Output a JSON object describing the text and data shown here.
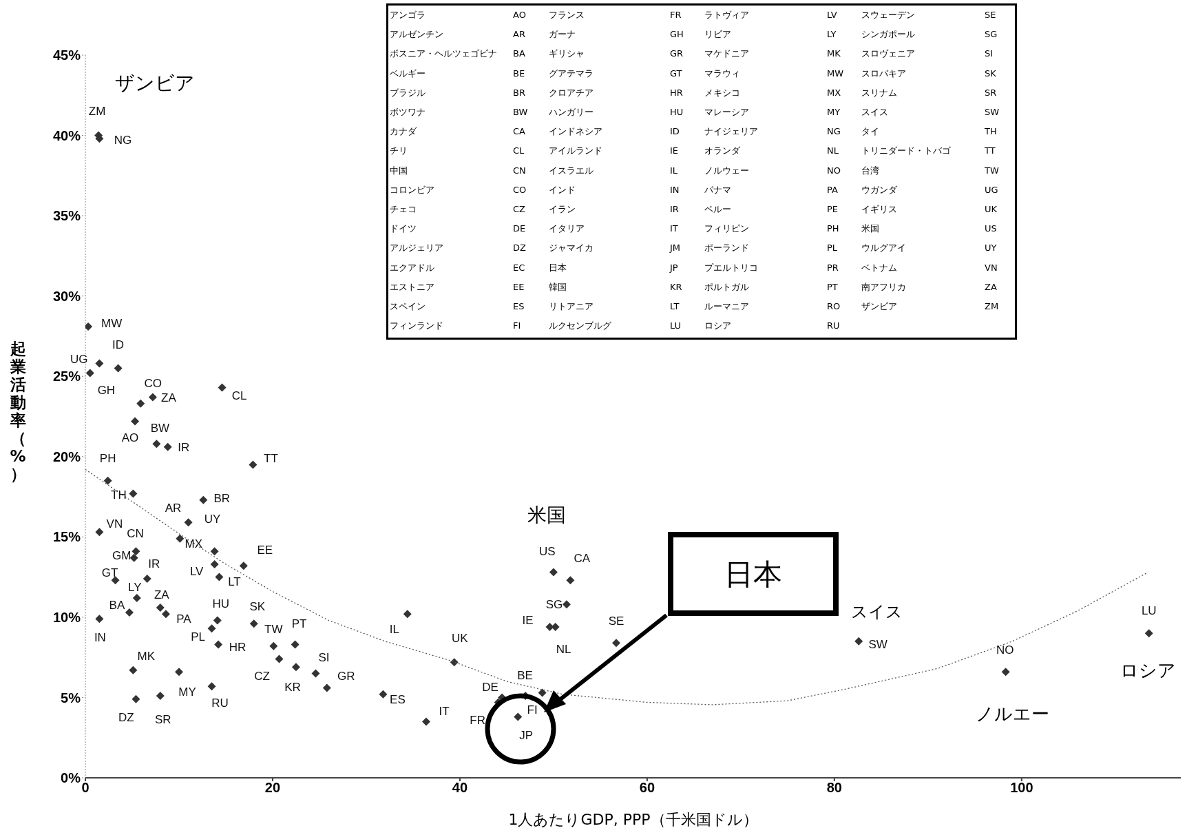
{
  "chart_data": [
    {
      "type": "scatter",
      "xlabel": "1人あたりGDP, PPP（千米国ドル）",
      "ylabel": "起業活動率（%）",
      "xlim": [
        0,
        117
      ],
      "ylim": [
        0,
        45
      ],
      "xticks": [
        0,
        20,
        40,
        60,
        80,
        100
      ],
      "yticks": [
        {
          "value": 0,
          "label": "0%"
        },
        {
          "value": 5,
          "label": "5%"
        },
        {
          "value": 10,
          "label": "10%"
        },
        {
          "value": 15,
          "label": "15%"
        },
        {
          "value": 20,
          "label": "20%"
        },
        {
          "value": 25,
          "label": "25%"
        },
        {
          "value": 30,
          "label": "30%"
        },
        {
          "value": 35,
          "label": "35%"
        },
        {
          "value": 40,
          "label": "40%"
        },
        {
          "value": 45,
          "label": "45%"
        }
      ],
      "annotations": [
        {
          "text": "ザンビア",
          "x": 1.4,
          "y": 40
        },
        {
          "text": "米国",
          "x": 50,
          "y": 12.8
        },
        "日本",
        {
          "text": "スイス",
          "x": 82.6,
          "y": 8.5
        },
        {
          "text": "ノルエー",
          "x": 98.3,
          "y": 6.6
        },
        {
          "text": "ロシア",
          "x": 113.6,
          "y": 9
        }
      ],
      "series": [
        {
          "type": "scatter",
          "color": "#333333",
          "marker": "diamond",
          "x": [
            1.4,
            1.5,
            0.3,
            3.5,
            0.5,
            1.5,
            5.9,
            7.2,
            14.6,
            5.3,
            7.6,
            8.8,
            17.9,
            2.4,
            5.1,
            12.6,
            11.0,
            10.1,
            13.8,
            13.8,
            14.3,
            16.9,
            1.5,
            5.4,
            5.2,
            3.2,
            6.6,
            5.5,
            4.7,
            8.0,
            8.6,
            1.5,
            14.1,
            13.5,
            14.2,
            18.0,
            20.1,
            22.4,
            20.7,
            22.5,
            24.6,
            25.8,
            5.1,
            10.0,
            13.5,
            8.0,
            5.4,
            31.8,
            34.4,
            39.4,
            36.4,
            44.5,
            44.1,
            46.2,
            47.0,
            48.8,
            50.0,
            51.8,
            51.4,
            49.6,
            50.2,
            56.7,
            82.6,
            98.3,
            113.6
          ],
          "values": [
            40.0,
            39.8,
            28.1,
            25.5,
            25.2,
            25.8,
            23.3,
            23.7,
            24.3,
            22.2,
            20.8,
            20.6,
            19.5,
            18.5,
            17.7,
            17.3,
            15.9,
            14.9,
            14.1,
            13.3,
            12.5,
            13.2,
            15.3,
            14.1,
            13.7,
            12.3,
            12.4,
            11.2,
            10.3,
            10.6,
            10.2,
            9.9,
            9.8,
            9.3,
            8.3,
            9.6,
            8.2,
            8.3,
            7.4,
            6.9,
            6.5,
            5.6,
            6.7,
            6.6,
            5.7,
            5.1,
            4.9,
            5.2,
            10.2,
            7.2,
            3.5,
            5.0,
            4.7,
            3.8,
            5.1,
            5.3,
            12.8,
            12.3,
            10.8,
            9.4,
            9.4,
            8.4,
            8.5,
            6.6,
            9.0
          ],
          "value_labels": [
            "ZM",
            "NG",
            "MW",
            "ID",
            "UG",
            "GH",
            "CO",
            "ZA",
            "CL",
            "AO",
            "BW",
            "IR",
            "TT",
            "PH",
            "TH",
            "BR",
            "AR",
            "MX",
            "UY",
            "LV",
            "LT",
            "EE",
            "VN",
            "CN",
            "GM",
            "GT",
            "IR",
            "LY",
            "BA",
            "ZA",
            "PA",
            "IN",
            "HU",
            "PL",
            "HR",
            "SK",
            "TW",
            "PT",
            "CZ",
            "KR",
            "SI",
            "GR",
            "MK",
            "MY",
            "RU",
            "SR",
            "DZ",
            "ES",
            "IL",
            "UK",
            "IT",
            "DE",
            "FR",
            "JP",
            "FI",
            "BE",
            "US",
            "CA",
            "SG",
            "IE",
            "NL",
            "SE",
            "SW",
            "NO",
            "LU"
          ]
        },
        {
          "type": "line",
          "color": "#555555",
          "line_style": "dotted",
          "x": [
            0,
            5,
            10,
            15,
            20,
            26,
            32,
            39,
            45,
            51,
            60,
            67,
            75,
            81,
            91,
            99,
            106,
            113.5
          ],
          "values": [
            19.2,
            17.2,
            15.2,
            13.3,
            11.6,
            9.8,
            8.5,
            7.3,
            6.0,
            5.2,
            4.7,
            4.55,
            4.8,
            5.5,
            6.8,
            8.5,
            10.4,
            12.8
          ]
        }
      ]
    },
    {
      "type": "other",
      "annotations": [
        "アンゴラ",
        "AO",
        "アルゼンチン",
        "AR",
        "ボスニア・ヘルツェゴビナ",
        "BA",
        "ベルギー",
        "BE",
        "ブラジル",
        "BR",
        "ボツワナ",
        "BW",
        "カナダ",
        "CA",
        "チリ",
        "CL",
        "中国",
        "CN",
        "コロンビア",
        "CO",
        "チェコ",
        "CZ",
        "ドイツ",
        "DE",
        "アルジェリア",
        "DZ",
        "エクアドル",
        "EC",
        "エストニア",
        "EE",
        "スペイン",
        "ES",
        "フィンランド",
        "FI",
        "フランス",
        "FR",
        "ガーナ",
        "GH",
        "ギリシャ",
        "GR",
        "グアテマラ",
        "GT",
        "クロアチア",
        "HR",
        "ハンガリー",
        "HU",
        "インドネシア",
        "ID",
        "アイルランド",
        "IE",
        "イスラエル",
        "IL",
        "インド",
        "IN",
        "イラン",
        "IR",
        "イタリア",
        "IT",
        "ジャマイカ",
        "JM",
        "日本",
        "JP",
        "韓国",
        "KR",
        "リトアニア",
        "LT",
        "ルクセンブルグ",
        "LU",
        "ラトヴィア",
        "LV",
        "リビア",
        "LY",
        "マケドニア",
        "MK",
        "マラウィ",
        "MW",
        "メキシコ",
        "MX",
        "マレーシア",
        "MY",
        "ナイジェリア",
        "NG",
        "オランダ",
        "NL",
        "ノルウェー",
        "NO",
        "パナマ",
        "PA",
        "ペルー",
        "PE",
        "フィリピン",
        "PH",
        "ポーランド",
        "PL",
        "プエルトリコ",
        "PR",
        "ポルトガル",
        "PT",
        "ルーマニア",
        "RO",
        "ロシア",
        "RU",
        "スウェーデン",
        "SE",
        "シンガポール",
        "SG",
        "スロヴェニア",
        "SI",
        "スロバキア",
        "SK",
        "スリナム",
        "SR",
        "スイス",
        "SW",
        "タイ",
        "TH",
        "トリニダード・トバゴ",
        "TT",
        "台湾",
        "TW",
        "ウガンダ",
        "UG",
        "イギリス",
        "UK",
        "米国",
        "US",
        "ウルグアイ",
        "UY",
        "ベトナム",
        "VN",
        "南アフリカ",
        "ZA",
        "ザンビア",
        "ZM"
      ]
    }
  ]
}
